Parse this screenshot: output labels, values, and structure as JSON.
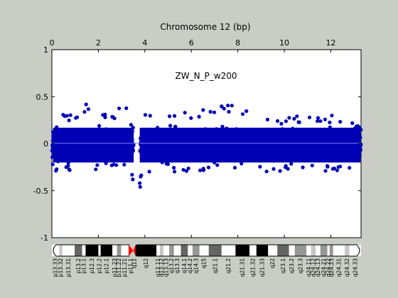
{
  "chart_data": {
    "type": "scatter",
    "title": "Chromosome 12 (bp)",
    "annotation": "ZW_N_P_w200",
    "x_tick_labels": [
      "0",
      "2",
      "4",
      "6",
      "8",
      "10",
      "12"
    ],
    "x_ticks": [
      0,
      2,
      4,
      6,
      8,
      10,
      12
    ],
    "xlim": [
      0,
      13.3
    ],
    "y_tick_labels": [
      "1",
      "0.5",
      "0",
      "-0.5",
      "-1"
    ],
    "y_ticks": [
      1,
      0.5,
      0,
      -0.5,
      -1
    ],
    "ylim": [
      -1,
      1
    ],
    "grid": false,
    "reference_line_y": 0,
    "point_color": "#0000b4",
    "reference_line_color": "#7f7fff",
    "centromere_x": 3.5,
    "series_envelope": [
      {
        "x": 0.0,
        "lo": -0.3,
        "hi": 0.52
      },
      {
        "x": 0.3,
        "lo": -0.28,
        "hi": 0.33
      },
      {
        "x": 1.0,
        "lo": -0.3,
        "hi": 0.35
      },
      {
        "x": 1.7,
        "lo": -0.3,
        "hi": 0.47
      },
      {
        "x": 2.5,
        "lo": -0.28,
        "hi": 0.37
      },
      {
        "x": 3.2,
        "lo": -0.3,
        "hi": 0.38
      },
      {
        "x": 3.5,
        "lo": -0.42,
        "hi": 0.2
      },
      {
        "x": 3.8,
        "lo": -0.35,
        "hi": 0.32
      },
      {
        "x": 5.0,
        "lo": -0.3,
        "hi": 0.3
      },
      {
        "x": 7.5,
        "lo": -0.28,
        "hi": 0.42
      },
      {
        "x": 9.0,
        "lo": -0.3,
        "hi": 0.35
      },
      {
        "x": 11.0,
        "lo": -0.3,
        "hi": 0.3
      },
      {
        "x": 12.5,
        "lo": -0.3,
        "hi": 0.3
      },
      {
        "x": 13.3,
        "lo": -0.3,
        "hi": 0.22
      }
    ],
    "ideogram": {
      "bands": [
        {
          "name": "p13.33",
          "start": 0.0,
          "end": 0.32,
          "stain": "gneg"
        },
        {
          "name": "p13.32",
          "start": 0.32,
          "end": 0.45,
          "stain": "gpos25"
        },
        {
          "name": "p13.31",
          "start": 0.45,
          "end": 0.98,
          "stain": "gneg"
        },
        {
          "name": "p13.2",
          "start": 0.98,
          "end": 1.3,
          "stain": "gpos75"
        },
        {
          "name": "p13.1",
          "start": 1.3,
          "end": 1.45,
          "stain": "gneg"
        },
        {
          "name": "p12.3",
          "start": 1.45,
          "end": 2.0,
          "stain": "gpos100"
        },
        {
          "name": "p12.2",
          "start": 2.0,
          "end": 2.1,
          "stain": "gneg"
        },
        {
          "name": "p12.1",
          "start": 2.1,
          "end": 2.6,
          "stain": "gpos100"
        },
        {
          "name": "p11.23",
          "start": 2.6,
          "end": 2.8,
          "stain": "gneg"
        },
        {
          "name": "p11.22",
          "start": 2.8,
          "end": 2.98,
          "stain": "gpos50"
        },
        {
          "name": "p11.21",
          "start": 2.98,
          "end": 3.3,
          "stain": "gneg"
        },
        {
          "name": "p11.1",
          "start": 3.3,
          "end": 3.5,
          "stain": "acen"
        },
        {
          "name": "q11",
          "start": 3.5,
          "end": 3.6,
          "stain": "acen"
        },
        {
          "name": "q12",
          "start": 3.6,
          "end": 4.5,
          "stain": "gpos100"
        },
        {
          "name": "q13.11",
          "start": 4.5,
          "end": 4.65,
          "stain": "gneg"
        },
        {
          "name": "q13.12",
          "start": 4.65,
          "end": 4.8,
          "stain": "gpos25"
        },
        {
          "name": "q13.13",
          "start": 4.8,
          "end": 5.05,
          "stain": "gneg"
        },
        {
          "name": "q13.2",
          "start": 5.05,
          "end": 5.25,
          "stain": "gpos50"
        },
        {
          "name": "q13.3",
          "start": 5.25,
          "end": 5.55,
          "stain": "gneg"
        },
        {
          "name": "q14.1",
          "start": 5.55,
          "end": 5.85,
          "stain": "gpos75"
        },
        {
          "name": "q14.2",
          "start": 5.85,
          "end": 6.05,
          "stain": "gneg"
        },
        {
          "name": "q14.3",
          "start": 6.05,
          "end": 6.35,
          "stain": "gpos50"
        },
        {
          "name": "q15",
          "start": 6.35,
          "end": 6.75,
          "stain": "gneg"
        },
        {
          "name": "q21.1",
          "start": 6.75,
          "end": 7.3,
          "stain": "gpos75"
        },
        {
          "name": "q21.2",
          "start": 7.3,
          "end": 7.9,
          "stain": "gneg"
        },
        {
          "name": "q21.31",
          "start": 7.9,
          "end": 8.5,
          "stain": "gpos100"
        },
        {
          "name": "q21.32",
          "start": 8.5,
          "end": 8.8,
          "stain": "gneg"
        },
        {
          "name": "q21.33",
          "start": 8.8,
          "end": 9.3,
          "stain": "gpos100"
        },
        {
          "name": "q22",
          "start": 9.3,
          "end": 9.7,
          "stain": "gneg"
        },
        {
          "name": "q23.1",
          "start": 9.7,
          "end": 10.2,
          "stain": "gpos75"
        },
        {
          "name": "q23.2",
          "start": 10.2,
          "end": 10.45,
          "stain": "gneg"
        },
        {
          "name": "q23.3",
          "start": 10.45,
          "end": 10.95,
          "stain": "gpos50"
        },
        {
          "name": "q24.11",
          "start": 10.95,
          "end": 11.15,
          "stain": "gneg"
        },
        {
          "name": "q24.12",
          "start": 11.15,
          "end": 11.35,
          "stain": "gpos25"
        },
        {
          "name": "q24.13",
          "start": 11.35,
          "end": 11.55,
          "stain": "gneg"
        },
        {
          "name": "q24.21",
          "start": 11.55,
          "end": 11.85,
          "stain": "gpos50"
        },
        {
          "name": "q24.22",
          "start": 11.85,
          "end": 11.95,
          "stain": "gneg"
        },
        {
          "name": "q24.23",
          "start": 11.95,
          "end": 12.1,
          "stain": "gpos50"
        },
        {
          "name": "q24.31",
          "start": 12.1,
          "end": 12.6,
          "stain": "gneg"
        },
        {
          "name": "q24.32",
          "start": 12.6,
          "end": 12.8,
          "stain": "gpos25"
        },
        {
          "name": "q24.33",
          "start": 12.8,
          "end": 13.3,
          "stain": "gneg"
        }
      ],
      "stain_colors": {
        "gneg": "#ffffff",
        "gpos25": "#c8c8c8",
        "gpos50": "#969696",
        "gpos75": "#646464",
        "gpos100": "#000000",
        "acen": "#ff0000"
      }
    }
  }
}
